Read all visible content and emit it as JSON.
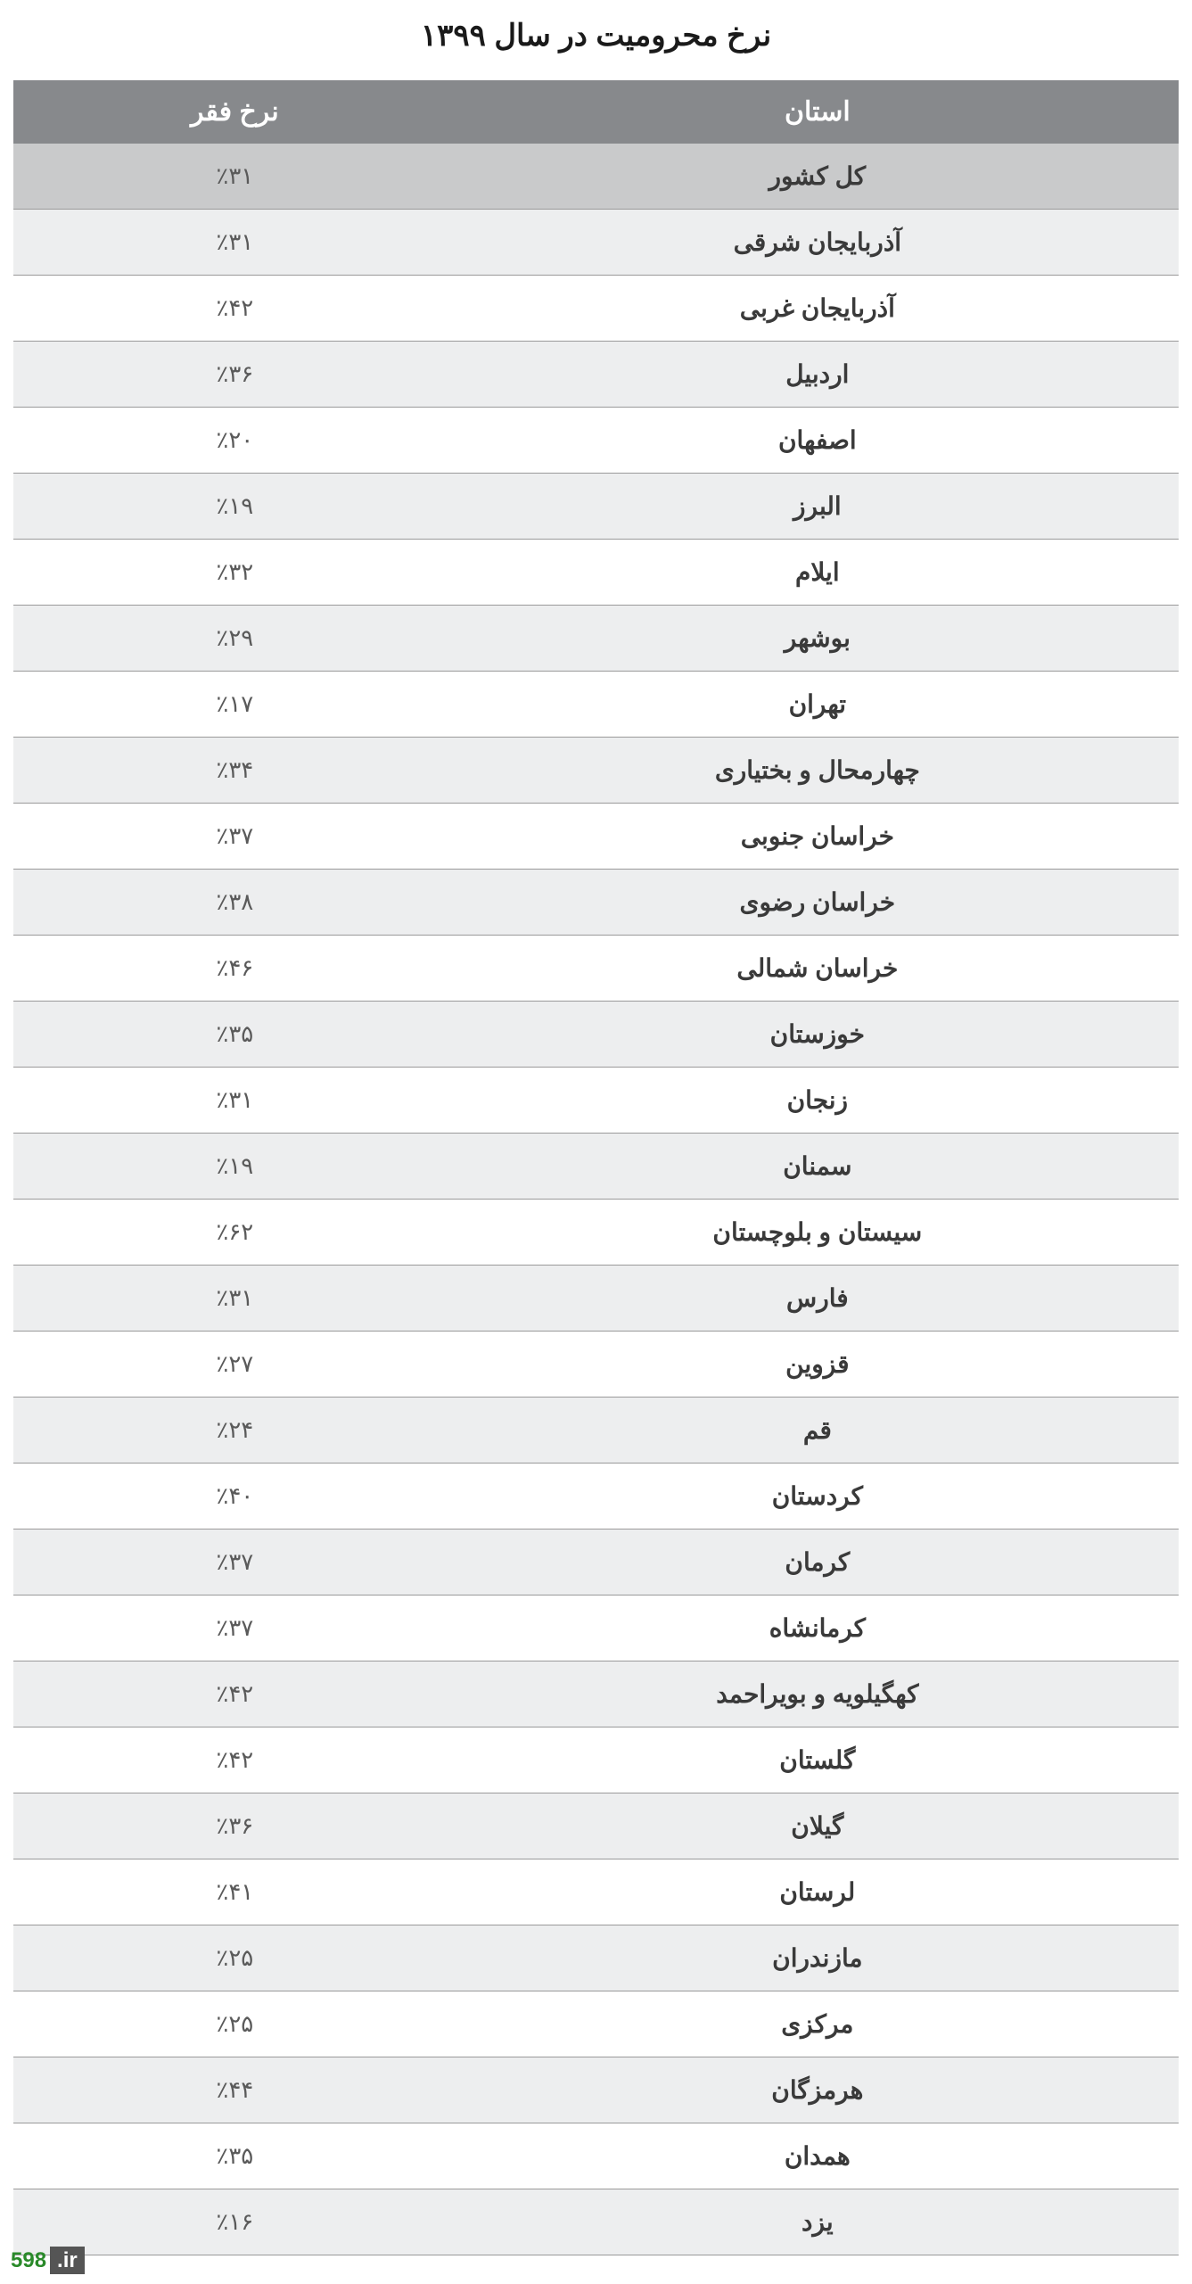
{
  "title": "نرخ محرومیت در سال ۱۳۹۹",
  "columns": {
    "province": "استان",
    "rate": "نرخ فقر"
  },
  "rows": [
    {
      "province": "کل کشور",
      "rate": "٪۳۱",
      "highlighted": true
    },
    {
      "province": "آذربایجان شرقی",
      "rate": "٪۳۱"
    },
    {
      "province": "آذربایجان غربی",
      "rate": "٪۴۲"
    },
    {
      "province": "اردبیل",
      "rate": "٪۳۶"
    },
    {
      "province": "اصفهان",
      "rate": "٪۲۰"
    },
    {
      "province": "البرز",
      "rate": "٪۱۹"
    },
    {
      "province": "ایلام",
      "rate": "٪۳۲"
    },
    {
      "province": "بوشهر",
      "rate": "٪۲۹"
    },
    {
      "province": "تهران",
      "rate": "٪۱۷"
    },
    {
      "province": "چهارمحال و بختیاری",
      "rate": "٪۳۴"
    },
    {
      "province": "خراسان جنوبی",
      "rate": "٪۳۷"
    },
    {
      "province": "خراسان رضوی",
      "rate": "٪۳۸"
    },
    {
      "province": "خراسان شمالی",
      "rate": "٪۴۶"
    },
    {
      "province": "خوزستان",
      "rate": "٪۳۵"
    },
    {
      "province": "زنجان",
      "rate": "٪۳۱"
    },
    {
      "province": "سمنان",
      "rate": "٪۱۹"
    },
    {
      "province": "سیستان و بلوچستان",
      "rate": "٪۶۲"
    },
    {
      "province": "فارس",
      "rate": "٪۳۱"
    },
    {
      "province": "قزوین",
      "rate": "٪۲۷"
    },
    {
      "province": "قم",
      "rate": "٪۲۴"
    },
    {
      "province": "کردستان",
      "rate": "٪۴۰"
    },
    {
      "province": "کرمان",
      "rate": "٪۳۷"
    },
    {
      "province": "کرمانشاه",
      "rate": "٪۳۷"
    },
    {
      "province": "کهگیلویه و بویراحمد",
      "rate": "٪۴۲"
    },
    {
      "province": "گلستان",
      "rate": "٪۴۲"
    },
    {
      "province": "گیلان",
      "rate": "٪۳۶"
    },
    {
      "province": "لرستان",
      "rate": "٪۴۱"
    },
    {
      "province": "مازندران",
      "rate": "٪۲۵"
    },
    {
      "province": "مرکزی",
      "rate": "٪۲۵"
    },
    {
      "province": "هرمزگان",
      "rate": "٪۴۴"
    },
    {
      "province": "همدان",
      "rate": "٪۳۵"
    },
    {
      "province": "یزد",
      "rate": "٪۱۶"
    }
  ],
  "footer": {
    "num": "598",
    "suffix": ".ir"
  },
  "styling": {
    "type": "table",
    "header_bg": "#87898c",
    "header_text_color": "#ffffff",
    "highlighted_row_bg": "#c9cacb",
    "alt_row_bg": "#edeeef",
    "normal_row_bg": "#ffffff",
    "border_color": "#9a9a9a",
    "title_color": "#1a1a1a",
    "province_text_color": "#3a3a3a",
    "rate_text_color": "#5a5a5a",
    "title_fontsize": 34,
    "header_fontsize": 30,
    "province_fontsize": 28,
    "rate_fontsize": 26,
    "province_col_width_pct": 62,
    "rate_col_width_pct": 38
  }
}
